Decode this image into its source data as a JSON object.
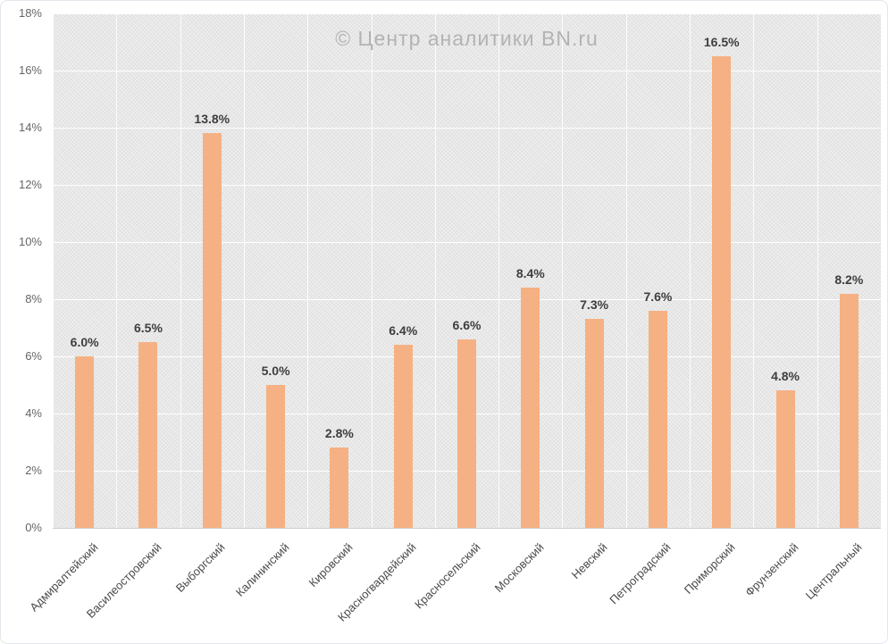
{
  "watermark": "© Центр аналитики BN.ru",
  "colors": {
    "bar": "#f5b183",
    "data_label": "#3e3e3e",
    "axis_label": "#666666",
    "category_label": "#4a4a4a",
    "watermark": "#b3b3b3",
    "plot_background": "#eeeeee",
    "gridline": "#ffffff",
    "axis_line": "#cfcfcf"
  },
  "chart_data": {
    "type": "bar",
    "title": "",
    "xlabel": "",
    "ylabel": "",
    "categories": [
      "Адмиралтейский",
      "Василеостровский",
      "Выборгский",
      "Калининский",
      "Кировский",
      "Красногвардейский",
      "Красносельский",
      "Московский",
      "Невский",
      "Петроградский",
      "Приморский",
      "Фрунзенский",
      "Центральный"
    ],
    "values": [
      6.0,
      6.5,
      13.8,
      5.0,
      2.8,
      6.4,
      6.6,
      8.4,
      7.3,
      7.6,
      16.5,
      4.8,
      8.2
    ],
    "data_labels": [
      "6.0%",
      "6.5%",
      "13.8%",
      "5.0%",
      "2.8%",
      "6.4%",
      "6.6%",
      "8.4%",
      "7.3%",
      "7.6%",
      "16.5%",
      "4.8%",
      "8.2%"
    ],
    "ylim": [
      0,
      18
    ],
    "ytick_step": 2,
    "ytick_labels": [
      "0%",
      "2%",
      "4%",
      "6%",
      "8%",
      "10%",
      "12%",
      "14%",
      "16%",
      "18%"
    ],
    "grid": true,
    "legend": false,
    "category_label_rotation_deg": 45
  }
}
